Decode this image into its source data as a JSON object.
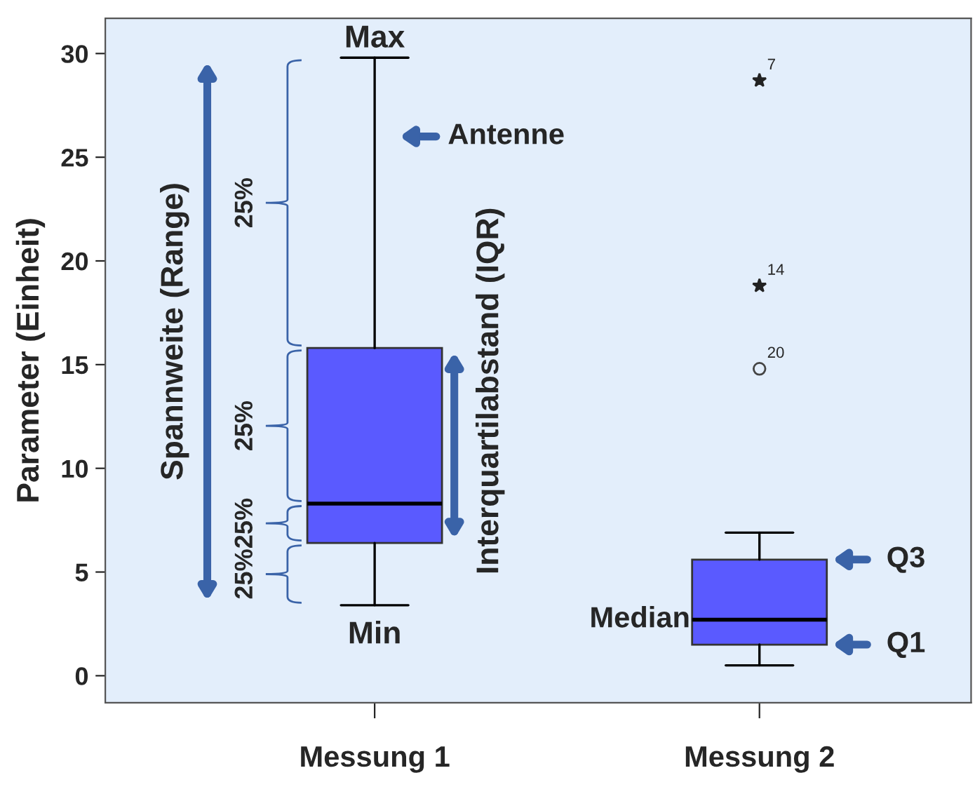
{
  "chart_data": {
    "type": "box",
    "ylabel": "Parameter (Einheit)",
    "categories": [
      "Messung 1",
      "Messung 2"
    ],
    "boxes": [
      {
        "low": 3.4,
        "q1": 6.4,
        "median": 8.3,
        "q3": 15.8,
        "high": 29.8
      },
      {
        "low": 0.5,
        "q1": 1.5,
        "median": 2.7,
        "q3": 5.6,
        "high": 6.9,
        "outliers": [
          28.7,
          18.8,
          14.8
        ]
      }
    ],
    "colors": [
      "#5a5aff",
      "#5a5aff"
    ],
    "ylim": [
      -1.3,
      31.7
    ],
    "yticks": [
      0,
      5,
      10,
      15,
      20,
      25,
      30
    ],
    "grid": false,
    "annotations": [
      {
        "text": "Max",
        "x": "Messung 1",
        "y": 29.8
      },
      {
        "text": "Min",
        "x": "Messung 1",
        "y": 3.4
      },
      {
        "text": "Antenne",
        "x": "Messung 1",
        "y": 26
      },
      {
        "text": "Median",
        "x": "Messung 2",
        "y": 2.7
      },
      "Q3",
      "Q1",
      "Spannweite (Range)",
      "Interquartilabstand (IQR)",
      "25%",
      "25%",
      "25%",
      "25%",
      "7",
      "14",
      "20"
    ]
  }
}
